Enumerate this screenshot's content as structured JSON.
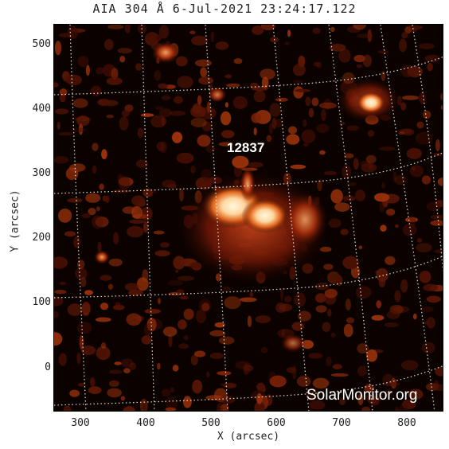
{
  "title": "AIA 304 Å  6-Jul-2021 23:24:17.122",
  "axes": {
    "x_label": "X (arcsec)",
    "y_label": "Y (arcsec)",
    "x_ticks": [
      "300",
      "400",
      "500",
      "600",
      "700",
      "800"
    ],
    "y_ticks": [
      "500",
      "400",
      "300",
      "200",
      "100",
      "0"
    ]
  },
  "region_label": "12837",
  "watermark": "SolarMonitor.org",
  "colors": {
    "background": "#0b0200",
    "bright": "#fff6d8",
    "mid": "#d9531a",
    "dim": "#5a1204"
  }
}
